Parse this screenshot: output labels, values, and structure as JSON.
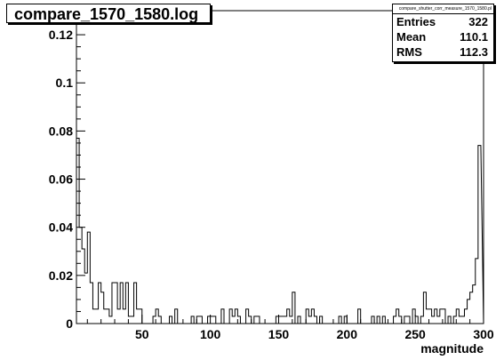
{
  "chart_data": {
    "type": "histogram",
    "title": "compare_1570_1580.log",
    "xlabel": "magnitude",
    "ylabel": "",
    "xlim": [
      2,
      300
    ],
    "ylim": [
      0,
      0.13
    ],
    "xticks": [
      50,
      100,
      150,
      200,
      250,
      300
    ],
    "yticks": [
      0,
      0.02,
      0.04,
      0.06,
      0.08,
      0.1,
      0.12
    ],
    "ytick_labels": [
      "0",
      "0.02",
      "0.04",
      "0.06",
      "0.08",
      "0.1",
      "0.12"
    ],
    "bin_width": 2,
    "values": [
      0.077,
      0.04,
      0.031,
      0.021,
      0.038,
      0.017,
      0.006,
      0.006,
      0.017,
      0.013,
      0.006,
      0.006,
      0.003,
      0.017,
      0.017,
      0.006,
      0.017,
      0.006,
      0.017,
      0.003,
      0.003,
      0.017,
      0.006,
      0.006,
      0.0,
      0.0,
      0.0,
      0.0,
      0.003,
      0.006,
      0.003,
      0.0,
      0.0,
      0.0,
      0.003,
      0.0,
      0.006,
      0.0,
      0.0,
      0.0,
      0.0,
      0.0,
      0.003,
      0.0,
      0.003,
      0.003,
      0.0,
      0.0,
      0.003,
      0.003,
      0.003,
      0.0,
      0.0,
      0.006,
      0.0,
      0.0,
      0.006,
      0.003,
      0.006,
      0.003,
      0.0,
      0.0,
      0.006,
      0.003,
      0.0,
      0.003,
      0.003,
      0.0,
      0.0,
      0.0,
      0.0,
      0.0,
      0.0,
      0.003,
      0.003,
      0.003,
      0.003,
      0.006,
      0.003,
      0.013,
      0.0,
      0.003,
      0.0,
      0.0,
      0.006,
      0.003,
      0.006,
      0.003,
      0.0,
      0.003,
      0.0,
      0.0,
      0.0,
      0.0,
      0.0,
      0.0,
      0.003,
      0.0,
      0.003,
      0.0,
      0.0,
      0.0,
      0.0,
      0.006,
      0.0,
      0.0,
      0.0,
      0.0,
      0.003,
      0.0,
      0.003,
      0.0,
      0.003,
      0.0,
      0.0,
      0.0,
      0.003,
      0.006,
      0.003,
      0.0,
      0.003,
      0.003,
      0.0,
      0.006,
      0.003,
      0.0,
      0.003,
      0.013,
      0.006,
      0.006,
      0.003,
      0.006,
      0.003,
      0.006,
      0.006,
      0.0,
      0.003,
      0.0,
      0.003,
      0.006,
      0.003,
      0.003,
      0.006,
      0.01,
      0.013,
      0.016,
      0.027,
      0.074
    ]
  },
  "title_text": "compare_1570_1580.log",
  "stats": {
    "name": "compare_shutter_corr_measure_1570_1580.pl",
    "rows": [
      {
        "label": "Entries",
        "value": "322"
      },
      {
        "label": "Mean",
        "value": "110.1"
      },
      {
        "label": "RMS",
        "value": "112.3"
      }
    ]
  }
}
